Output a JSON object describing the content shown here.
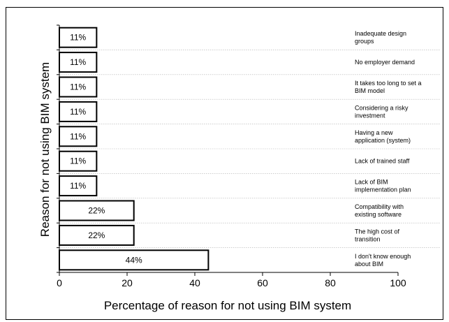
{
  "chart_data": {
    "type": "bar",
    "orientation": "horizontal",
    "categories": [
      [
        "Inadequate design",
        "groups"
      ],
      [
        "No employer demand"
      ],
      [
        "It takes too long to set a",
        "BIM model"
      ],
      [
        "Considering a risky",
        "investment"
      ],
      [
        "Having a new",
        "application (system)"
      ],
      [
        "Lack of trained staff"
      ],
      [
        "Lack of BIM",
        "implementation plan"
      ],
      [
        "Compatibility with",
        "existing software"
      ],
      [
        "The high cost of",
        "transition"
      ],
      [
        "I don't know enough",
        "about BIM"
      ]
    ],
    "values": [
      11,
      11,
      11,
      11,
      11,
      11,
      11,
      22,
      22,
      44
    ],
    "data_labels": [
      "11%",
      "11%",
      "11%",
      "11%",
      "11%",
      "11%",
      "11%",
      "22%",
      "22%",
      "44%"
    ],
    "xlabel": "Percentage of reason for not using BIM system",
    "ylabel": "Reason for not using BIM system",
    "xlim": [
      0,
      100
    ],
    "xticks": [
      0,
      20,
      40,
      60,
      80,
      100
    ],
    "grid": "horizontal dotted separators",
    "bar_fill": "#ffffff",
    "bar_stroke": "#000000"
  }
}
